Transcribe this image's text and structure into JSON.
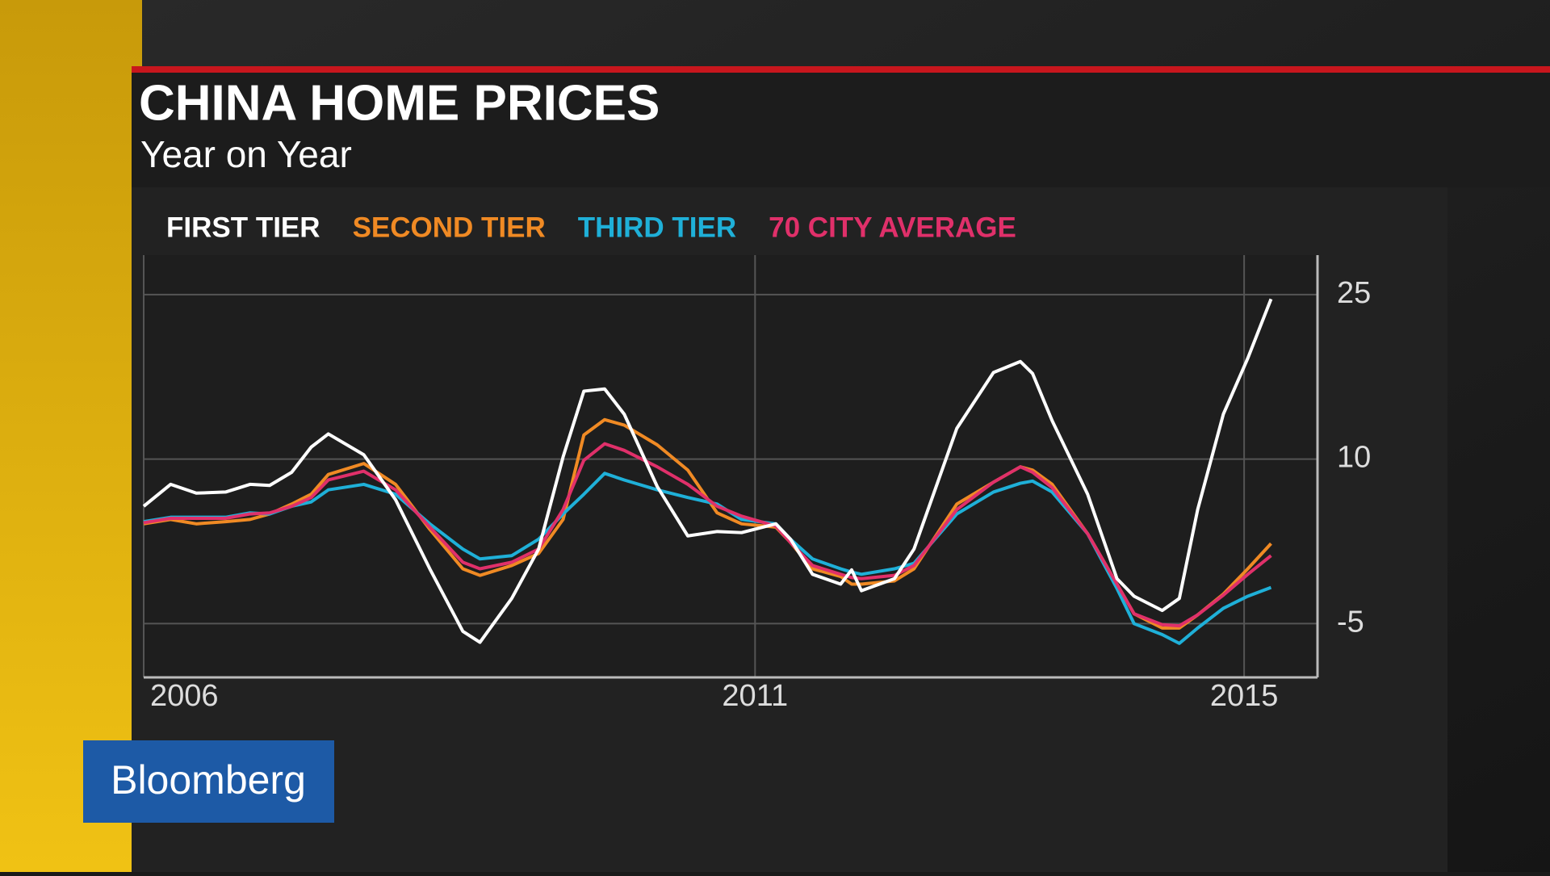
{
  "brand": "Bloomberg",
  "chart_data": {
    "type": "line",
    "title": "CHINA HOME PRICES",
    "subtitle": "Year on Year",
    "x": [
      2006.0,
      2006.22,
      2006.43,
      2006.67,
      2006.87,
      2007.03,
      2007.21,
      2007.37,
      2007.51,
      2007.8,
      2008.06,
      2008.34,
      2008.61,
      2008.75,
      2009.01,
      2009.23,
      2009.43,
      2009.6,
      2009.77,
      2009.93,
      2010.2,
      2010.45,
      2010.69,
      2010.89,
      2011.17,
      2011.29,
      2011.47,
      2011.7,
      2011.79,
      2011.87,
      2012.14,
      2012.3,
      2012.65,
      2012.95,
      2013.17,
      2013.27,
      2013.43,
      2013.72,
      2013.96,
      2014.1,
      2014.33,
      2014.47,
      2014.62,
      2014.83,
      2015.03,
      2015.22
    ],
    "series": [
      {
        "name": "FIRST TIER",
        "color": "#ffffff",
        "values": [
          5.7,
          7.7,
          6.9,
          7.0,
          7.7,
          7.6,
          8.8,
          11.1,
          12.3,
          10.4,
          6.3,
          0.0,
          -5.7,
          -6.7,
          -2.7,
          1.8,
          10.2,
          16.2,
          16.4,
          14.1,
          7.5,
          3.0,
          3.4,
          3.3,
          4.1,
          2.7,
          -0.5,
          -1.4,
          -0.1,
          -2.0,
          -0.9,
          1.8,
          12.8,
          17.9,
          18.9,
          17.8,
          13.5,
          6.8,
          -0.9,
          -2.5,
          -3.8,
          -2.7,
          5.4,
          14.1,
          19.2,
          24.6
        ]
      },
      {
        "name": "SECOND TIER",
        "color": "#f08a24",
        "values": [
          4.1,
          4.5,
          4.1,
          4.3,
          4.5,
          5.0,
          5.9,
          6.8,
          8.6,
          9.6,
          7.7,
          3.6,
          0.0,
          -0.6,
          0.3,
          1.4,
          4.5,
          12.2,
          13.6,
          13.1,
          11.3,
          9.0,
          5.1,
          4.1,
          3.8,
          2.4,
          0.0,
          -0.7,
          -1.4,
          -1.4,
          -1.1,
          0.0,
          5.9,
          7.9,
          9.3,
          9.0,
          7.7,
          3.2,
          -1.4,
          -4.1,
          -5.4,
          -5.4,
          -4.2,
          -2.3,
          0.0,
          2.3
        ]
      },
      {
        "name": "THIRD TIER",
        "color": "#1fb0d8",
        "values": [
          4.3,
          4.7,
          4.7,
          4.7,
          5.1,
          5.0,
          5.7,
          6.1,
          7.2,
          7.7,
          6.8,
          4.1,
          1.8,
          0.9,
          1.2,
          2.7,
          5.0,
          6.8,
          8.7,
          8.1,
          7.2,
          6.5,
          5.9,
          4.5,
          4.1,
          2.7,
          0.9,
          0.0,
          -0.3,
          -0.5,
          0.0,
          0.5,
          5.0,
          7.0,
          7.8,
          8.0,
          7.0,
          3.2,
          -1.8,
          -5.0,
          -6.0,
          -6.8,
          -5.4,
          -3.6,
          -2.5,
          -1.7
        ]
      },
      {
        "name": "70 CITY AVERAGE",
        "color": "#e0306a",
        "values": [
          4.2,
          4.6,
          4.6,
          4.6,
          5.0,
          5.1,
          5.7,
          6.5,
          8.1,
          8.9,
          7.2,
          3.8,
          0.6,
          0.0,
          0.6,
          1.8,
          5.4,
          9.9,
          11.4,
          10.8,
          9.3,
          7.7,
          5.7,
          4.8,
          3.9,
          2.4,
          0.3,
          -0.5,
          -0.8,
          -0.9,
          -0.6,
          0.3,
          5.4,
          7.9,
          9.3,
          8.8,
          7.4,
          3.2,
          -1.4,
          -4.1,
          -5.1,
          -5.2,
          -4.2,
          -2.4,
          -0.5,
          1.2
        ]
      }
    ],
    "xlim": [
      2006,
      2015.6
    ],
    "xticks": [
      2006,
      2011,
      2015
    ],
    "ylim": [
      -9.9,
      28.6
    ],
    "yticks": [
      -5,
      10,
      25
    ],
    "grid": true
  }
}
